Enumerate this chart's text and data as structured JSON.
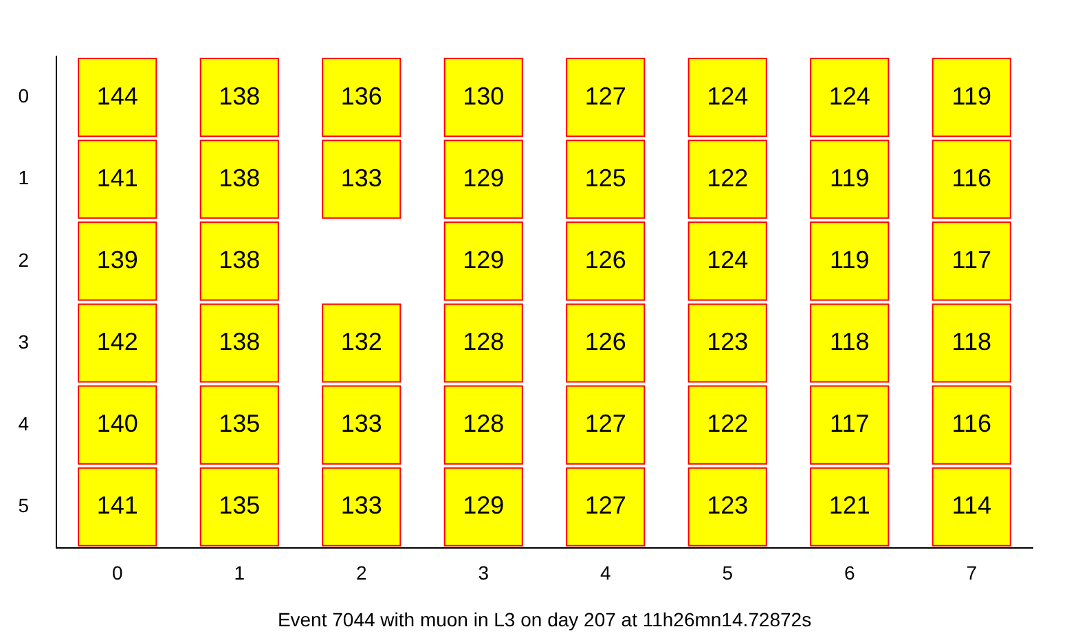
{
  "chart_data": {
    "type": "heatmap",
    "xlabel": "Event 7044 with muon in L3 on day 207 at 11h26mn14.72872s",
    "categories": [
      "0",
      "1",
      "2",
      "3",
      "4",
      "5",
      "6",
      "7"
    ],
    "y_categories": [
      "0",
      "1",
      "2",
      "3",
      "4",
      "5"
    ],
    "cells": [
      [
        144,
        138,
        136,
        130,
        127,
        124,
        124,
        119
      ],
      [
        141,
        138,
        133,
        129,
        125,
        122,
        119,
        116
      ],
      [
        139,
        138,
        null,
        129,
        126,
        124,
        119,
        117
      ],
      [
        142,
        138,
        132,
        128,
        126,
        123,
        118,
        118
      ],
      [
        140,
        135,
        133,
        128,
        127,
        122,
        117,
        116
      ],
      [
        141,
        135,
        133,
        129,
        127,
        123,
        121,
        114
      ]
    ],
    "color": "#ffff00",
    "data_labels": true
  }
}
